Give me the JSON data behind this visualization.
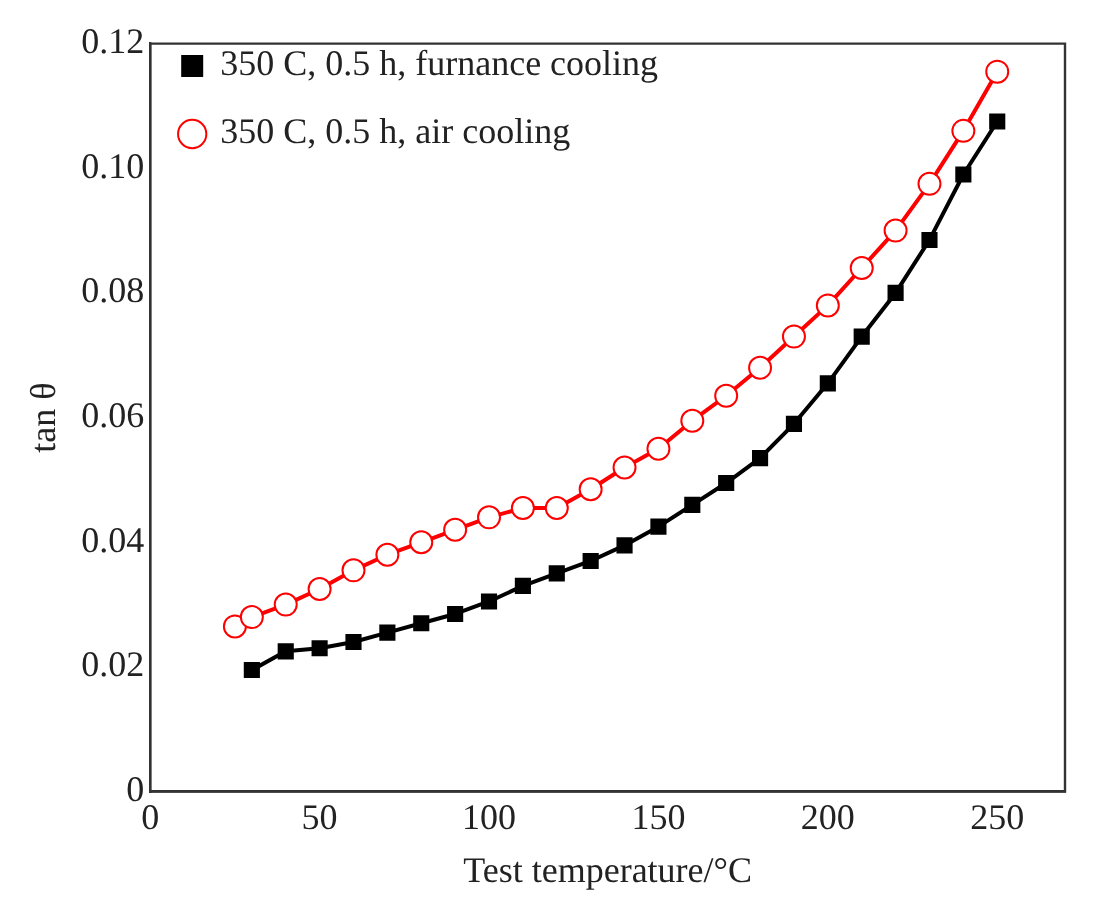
{
  "chart_data": {
    "type": "line",
    "xlabel": "Test temperature/°C",
    "ylabel": "tan θ",
    "xlim": [
      0,
      270
    ],
    "xticks": [
      0,
      50,
      100,
      150,
      200,
      250
    ],
    "ylim": [
      0,
      0.12
    ],
    "yticks": [
      0,
      0.02,
      0.04,
      0.06,
      0.08,
      {
        "value": 0.1,
        "label": "0.10"
      },
      0.12
    ],
    "grid": false,
    "legend": "top left",
    "series": [
      {
        "name": "350 C, 0.5 h, furnance cooling",
        "color": "#000000",
        "marker": "square",
        "x": [
          30,
          40,
          50,
          60,
          70,
          80,
          90,
          100,
          110,
          120,
          130,
          140,
          150,
          160,
          170,
          180,
          190,
          200,
          210,
          220,
          230,
          240,
          250
        ],
        "values": [
          0.0195,
          0.0225,
          0.023,
          0.024,
          0.0255,
          0.027,
          0.0285,
          0.0305,
          0.033,
          0.035,
          0.037,
          0.0395,
          0.0425,
          0.046,
          0.0495,
          0.0535,
          0.059,
          0.0655,
          0.073,
          0.08,
          0.0885,
          0.099,
          0.1075
        ]
      },
      {
        "name": "350 C, 0.5 h, air cooling",
        "color": "#ff0000",
        "marker": "circle",
        "x": [
          25,
          30,
          40,
          50,
          60,
          70,
          80,
          90,
          100,
          110,
          120,
          130,
          140,
          150,
          160,
          170,
          180,
          190,
          200,
          210,
          220,
          230,
          240,
          250
        ],
        "values": [
          0.0265,
          0.028,
          0.03,
          0.0325,
          0.0355,
          0.038,
          0.04,
          0.042,
          0.044,
          0.0455,
          0.0455,
          0.0485,
          0.052,
          0.055,
          0.0595,
          0.0635,
          0.068,
          0.073,
          0.078,
          0.084,
          0.09,
          0.0975,
          0.106,
          0.1155
        ]
      }
    ]
  }
}
